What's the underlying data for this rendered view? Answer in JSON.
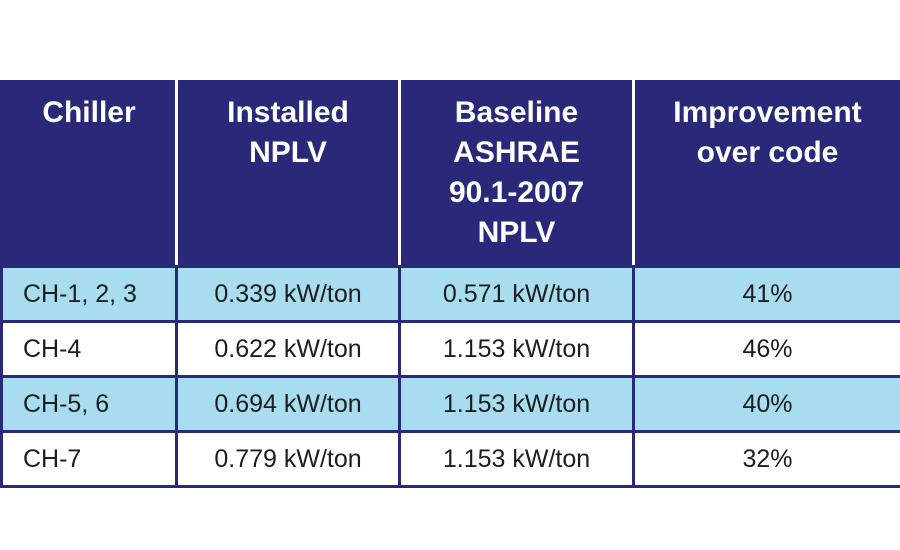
{
  "table": {
    "header": [
      [
        "Chiller"
      ],
      [
        "Installed",
        "NPLV"
      ],
      [
        "Baseline",
        "ASHRAE",
        "90.1-2007",
        "NPLV"
      ],
      [
        "Improvement",
        "over code"
      ]
    ],
    "rows": [
      [
        "CH-1, 2, 3",
        "0.339 kW/ton",
        "0.571 kW/ton",
        "41%"
      ],
      [
        "CH-4",
        "0.622 kW/ton",
        "1.153 kW/ton",
        "46%"
      ],
      [
        "CH-5, 6",
        "0.694 kW/ton",
        "1.153 kW/ton",
        "40%"
      ],
      [
        "CH-7",
        "0.779 kW/ton",
        "1.153 kW/ton",
        "32%"
      ]
    ]
  }
}
